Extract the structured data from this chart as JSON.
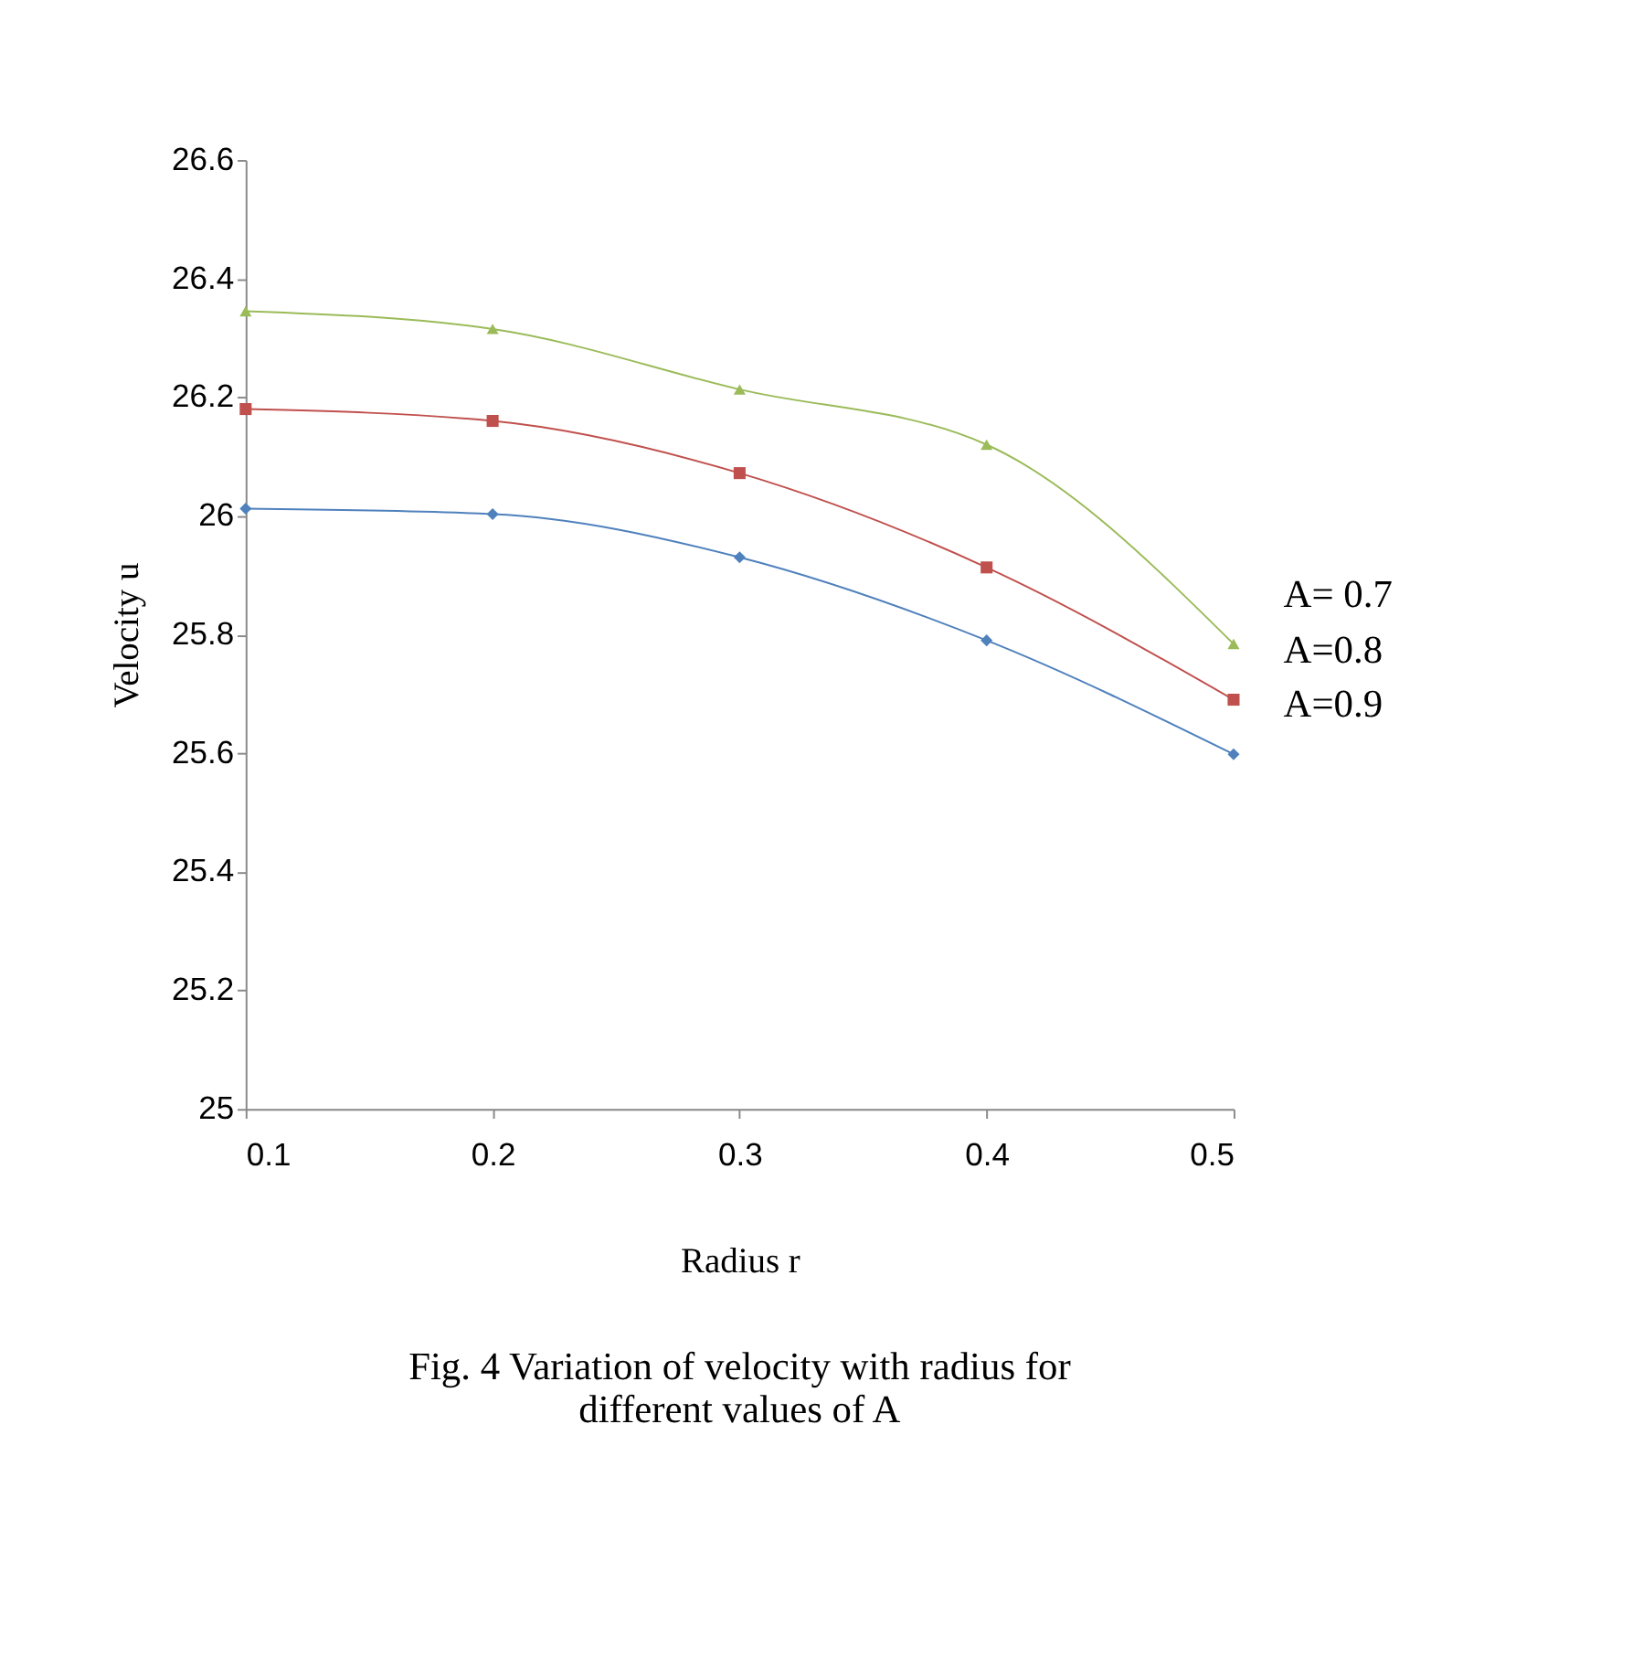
{
  "chart_data": {
    "type": "line",
    "title": "Fig. 4 Variation of velocity with radius for different values of A",
    "xlabel": "Radius r",
    "ylabel": "Velocity u",
    "x": [
      0.1,
      0.2,
      0.3,
      0.4,
      0.5
    ],
    "series": [
      {
        "name": "A= 0.7",
        "color": "#9bbb59",
        "marker": "triangle",
        "values": [
          26.345,
          26.315,
          26.213,
          26.12,
          25.784
        ]
      },
      {
        "name": "A=0.8",
        "color": "#c0504d",
        "marker": "square",
        "values": [
          26.18,
          26.16,
          26.072,
          25.913,
          25.69
        ]
      },
      {
        "name": "A=0.9",
        "color": "#4f81bd",
        "marker": "diamond",
        "values": [
          26.012,
          26.003,
          25.93,
          25.79,
          25.598
        ]
      }
    ],
    "xlim": [
      0.1,
      0.5
    ],
    "xticks": [
      0.1,
      0.2,
      0.3,
      0.4,
      0.5
    ],
    "ylim": [
      25,
      26.6
    ],
    "yticks": [
      25,
      25.2,
      25.4,
      25.6,
      25.8,
      26,
      26.2,
      26.4,
      26.6
    ],
    "grid": false,
    "legend": false,
    "line_style": "solid"
  }
}
